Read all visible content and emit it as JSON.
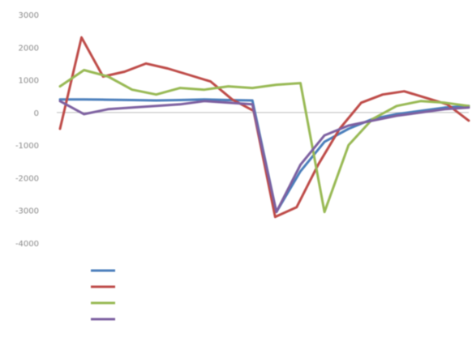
{
  "chart_data": {
    "type": "line",
    "title": "",
    "xlabel": "",
    "ylabel": "",
    "x_tick_labels": [
      "",
      "",
      "",
      "",
      "",
      "",
      "",
      "",
      "",
      "",
      "",
      "",
      ""
    ],
    "y_ticks": [
      3000,
      2000,
      1000,
      0,
      -1000,
      -2000,
      -3000,
      -4000
    ],
    "y_tick_labels": [
      "3000",
      "2000",
      "1000",
      "0",
      "-1000",
      "-2000",
      "-3000",
      "-4000"
    ],
    "ylim": [
      -4000,
      3000
    ],
    "grid": false,
    "legend_position": "bottom",
    "series": [
      {
        "name": "",
        "color": "#4a7ebb",
        "values": [
          400,
          400,
          390,
          380,
          370,
          380,
          400,
          380,
          370,
          -3050,
          -1800,
          -900,
          -500,
          -200,
          -50,
          50,
          150,
          200
        ]
      },
      {
        "name": "",
        "color": "#be4b48",
        "values": [
          -500,
          2300,
          1100,
          1250,
          1500,
          1350,
          1150,
          950,
          400,
          50,
          -3200,
          -2900,
          -1600,
          -500,
          300,
          550,
          650,
          450,
          250,
          -250
        ]
      },
      {
        "name": "",
        "color": "#98b954",
        "values": [
          800,
          1300,
          1100,
          700,
          550,
          750,
          700,
          800,
          750,
          850,
          900,
          -3050,
          -1000,
          -200,
          200,
          350,
          300,
          200
        ]
      },
      {
        "name": "",
        "color": "#7d60a0",
        "values": [
          350,
          -50,
          100,
          150,
          200,
          250,
          350,
          300,
          250,
          -3050,
          -1600,
          -700,
          -400,
          -250,
          -100,
          0,
          100,
          150
        ]
      }
    ]
  }
}
